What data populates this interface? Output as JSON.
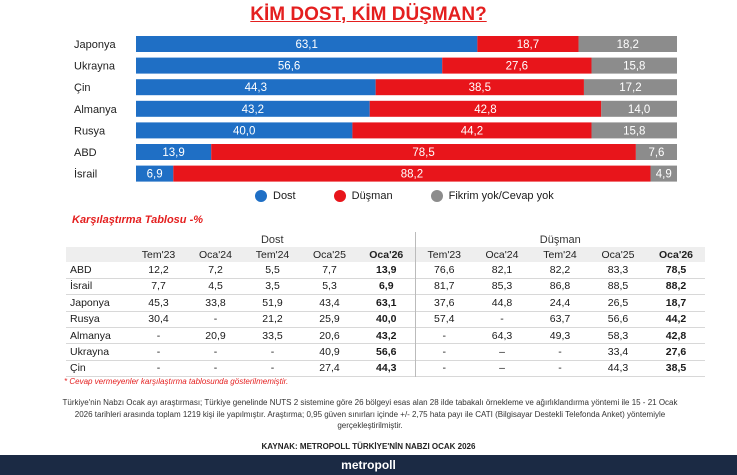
{
  "title": "KİM DOST, KİM DÜŞMAN?",
  "chart_data": {
    "type": "bar",
    "stacked": true,
    "orientation": "horizontal",
    "categories": [
      "Japonya",
      "Ukrayna",
      "Çin",
      "Almanya",
      "Rusya",
      "ABD",
      "İsrail"
    ],
    "labels": [
      [
        "63,1",
        "18,7",
        "18,2"
      ],
      [
        "56,6",
        "27,6",
        "15,8"
      ],
      [
        "44,3",
        "38,5",
        "17,2"
      ],
      [
        "43,2",
        "42,8",
        "14,0"
      ],
      [
        "40,0",
        "44,2",
        "15,8"
      ],
      [
        "13,9",
        "78,5",
        "7,6"
      ],
      [
        "6,9",
        "88,2",
        "4,9"
      ]
    ],
    "series": [
      {
        "name": "Dost",
        "color": "#1f6fc5",
        "values": [
          63.1,
          56.6,
          44.3,
          43.2,
          40.0,
          13.9,
          6.9
        ]
      },
      {
        "name": "Düşman",
        "color": "#e8151b",
        "values": [
          18.7,
          27.6,
          38.5,
          42.8,
          44.2,
          78.5,
          88.2
        ]
      },
      {
        "name": "Fikrim yok/Cevap yok",
        "color": "#8c8c8c",
        "values": [
          18.2,
          15.8,
          17.2,
          14.0,
          15.8,
          7.6,
          4.9
        ]
      }
    ],
    "xlim": [
      0,
      100
    ]
  },
  "comparison": {
    "title": "Karşılaştırma Tablosu -%",
    "group_dost": "Dost",
    "group_dusman": "Düşman",
    "periods": [
      "Tem'23",
      "Oca'24",
      "Tem'24",
      "Oca'25",
      "Oca'26"
    ],
    "rows": [
      {
        "name": "ABD",
        "dost": [
          "12,2",
          "7,2",
          "5,5",
          "7,7",
          "13,9"
        ],
        "dusman": [
          "76,6",
          "82,1",
          "82,2",
          "83,3",
          "78,5"
        ]
      },
      {
        "name": "İsrail",
        "dost": [
          "7,7",
          "4,5",
          "3,5",
          "5,3",
          "6,9"
        ],
        "dusman": [
          "81,7",
          "85,3",
          "86,8",
          "88,5",
          "88,2"
        ]
      },
      {
        "name": "Japonya",
        "dost": [
          "45,3",
          "33,8",
          "51,9",
          "43,4",
          "63,1"
        ],
        "dusman": [
          "37,6",
          "44,8",
          "24,4",
          "26,5",
          "18,7"
        ]
      },
      {
        "name": "Rusya",
        "dost": [
          "30,4",
          "-",
          "21,2",
          "25,9",
          "40,0"
        ],
        "dusman": [
          "57,4",
          "-",
          "63,7",
          "56,6",
          "44,2"
        ]
      },
      {
        "name": "Almanya",
        "dost": [
          "-",
          "20,9",
          "33,5",
          "20,6",
          "43,2"
        ],
        "dusman": [
          "-",
          "64,3",
          "49,3",
          "58,3",
          "42,8"
        ]
      },
      {
        "name": "Ukrayna",
        "dost": [
          "-",
          "-",
          "-",
          "40,9",
          "56,6"
        ],
        "dusman": [
          "-",
          "–",
          "-",
          "33,4",
          "27,6"
        ]
      },
      {
        "name": "Çin",
        "dost": [
          "-",
          "-",
          "-",
          "27,4",
          "44,3"
        ],
        "dusman": [
          "-",
          "–",
          "-",
          "44,3",
          "38,5"
        ]
      }
    ]
  },
  "note": "* Cevap vermeyenler karşılaştırma tablosunda gösterilmemiştir.",
  "methodology": "Türkiye'nin Nabzı Ocak ayı araştırması; Türkiye genelinde NUTS 2 sistemine göre 26 bölgeyi esas alan 28 ilde tabakalı örnekleme ve ağırlıklandırma yöntemi ile 15 - 21 Ocak 2026 tarihleri arasında toplam 1219 kişi ile yapılmıştır. Araştırma; 0,95 güven sınırları içinde +/- 2,75 hata payı ile CATI (Bilgisayar Destekli Telefonda Anket) yöntemiyle gerçekleştirilmiştir.",
  "source": "KAYNAK: METROPOLL TÜRKİYE'NİN NABZI OCAK 2026",
  "brand": "metropoll"
}
